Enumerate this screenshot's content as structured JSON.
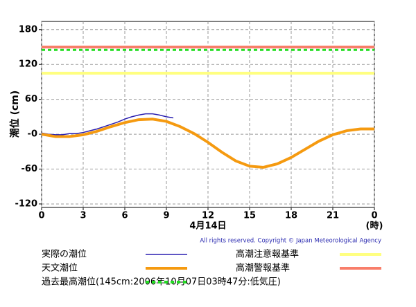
{
  "chart_data": {
    "type": "line",
    "y_label": "潮位 (cm)",
    "x_label": "4月14日",
    "x_unit": "(時)",
    "copyright": "All rights reserved. Copyright © Japan Meteorological Agency",
    "xlim": [
      0,
      24
    ],
    "xticks": [
      0,
      3,
      6,
      9,
      12,
      15,
      18,
      21,
      {
        "value": 24,
        "label": "0"
      }
    ],
    "ylim": [
      -126,
      194
    ],
    "yticks": [
      -120,
      -60,
      {
        "value": 0,
        "label": "-0"
      },
      60,
      120,
      180
    ],
    "grid": true,
    "series": [
      {
        "name": "実際の潮位",
        "color": "#2a1fb0",
        "x": [
          0,
          0.5,
          1,
          1.5,
          2,
          2.5,
          3,
          3.5,
          4,
          4.5,
          5,
          5.5,
          6,
          6.5,
          7,
          7.5,
          8,
          8.5,
          9,
          9.5
        ],
        "values": [
          2,
          0,
          -1,
          -1,
          1,
          1,
          3,
          6,
          9,
          13,
          17,
          21,
          26,
          30,
          33,
          35,
          35,
          33,
          30,
          28
        ]
      },
      {
        "name": "天文潮位",
        "color": "#f59a10",
        "x": [
          0,
          1,
          2,
          3,
          4,
          5,
          6,
          7,
          8,
          9,
          10,
          11,
          12,
          13,
          14,
          15,
          16,
          17,
          18,
          19,
          20,
          21,
          22,
          23,
          24
        ],
        "values": [
          0,
          -4,
          -4,
          -1,
          5,
          13,
          20,
          25,
          26,
          22,
          13,
          1,
          -14,
          -31,
          -46,
          -55,
          -57,
          -51,
          -40,
          -26,
          -12,
          -1,
          6,
          9,
          9
        ]
      }
    ],
    "reference_lines": [
      {
        "name": "高潮注意報基準",
        "color": "#ffff80",
        "value": 105,
        "dashed": false
      },
      {
        "name": "高潮警報基準",
        "color": "#f87e6a",
        "value": 150,
        "dashed": false
      },
      {
        "name": "過去最高潮位(145cm:2006年10月07日03時47分:低気圧)",
        "color": "#22dd22",
        "value": 145,
        "dashed": true
      }
    ]
  }
}
